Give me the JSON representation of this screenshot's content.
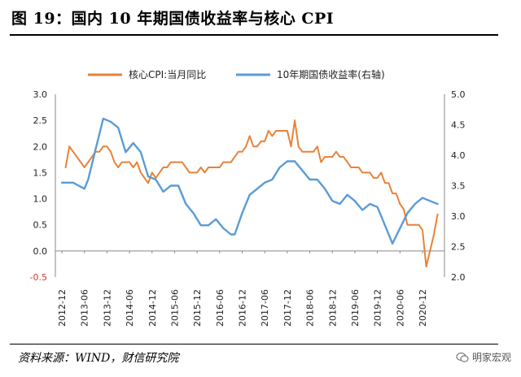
{
  "figure": {
    "title": "图 19：国内 10 年期国债收益率与核心 CPI",
    "source": "资料来源：WIND，财信研究院",
    "watermark": "明家宏观"
  },
  "chart_data": {
    "type": "line",
    "legend": [
      "核心CPI:当月同比",
      "10年期国债收益率(右轴)"
    ],
    "legend_position": "top",
    "grid": false,
    "colors": {
      "core_cpi": "#E8823A",
      "yield_10y": "#5B9BD5"
    },
    "x_ticks": [
      "2012-12",
      "2013-06",
      "2013-12",
      "2014-06",
      "2014-12",
      "2015-06",
      "2015-12",
      "2016-06",
      "2016-12",
      "2017-06",
      "2017-12",
      "2018-06",
      "2018-12",
      "2019-06",
      "2019-12",
      "2020-06",
      "2020-12"
    ],
    "y_left": {
      "ticks": [
        "3.0",
        "2.5",
        "2.0",
        "1.5",
        "1.0",
        "0.5",
        "0.0",
        "-0.5"
      ],
      "range": [
        -0.5,
        3.0
      ]
    },
    "y_right": {
      "ticks": [
        "5.0",
        "4.5",
        "4.0",
        "3.5",
        "3.0",
        "2.5",
        "2.0"
      ],
      "range": [
        2.0,
        5.0
      ]
    },
    "series": [
      {
        "name": "核心CPI:当月同比",
        "axis": "left",
        "x": [
          "2013-01",
          "2013-02",
          "2013-03",
          "2013-04",
          "2013-05",
          "2013-06",
          "2013-07",
          "2013-08",
          "2013-09",
          "2013-10",
          "2013-11",
          "2013-12",
          "2014-01",
          "2014-02",
          "2014-03",
          "2014-04",
          "2014-05",
          "2014-06",
          "2014-07",
          "2014-08",
          "2014-09",
          "2014-10",
          "2014-11",
          "2014-12",
          "2015-01",
          "2015-02",
          "2015-03",
          "2015-04",
          "2015-05",
          "2015-06",
          "2015-07",
          "2015-08",
          "2015-09",
          "2015-10",
          "2015-11",
          "2015-12",
          "2016-01",
          "2016-02",
          "2016-03",
          "2016-04",
          "2016-05",
          "2016-06",
          "2016-07",
          "2016-08",
          "2016-09",
          "2016-10",
          "2016-11",
          "2016-12",
          "2017-01",
          "2017-02",
          "2017-03",
          "2017-04",
          "2017-05",
          "2017-06",
          "2017-07",
          "2017-08",
          "2017-09",
          "2017-10",
          "2017-11",
          "2017-12",
          "2018-01",
          "2018-02",
          "2018-03",
          "2018-04",
          "2018-05",
          "2018-06",
          "2018-07",
          "2018-08",
          "2018-09",
          "2018-10",
          "2018-11",
          "2018-12",
          "2019-01",
          "2019-02",
          "2019-03",
          "2019-04",
          "2019-05",
          "2019-06",
          "2019-07",
          "2019-08",
          "2019-09",
          "2019-10",
          "2019-11",
          "2019-12",
          "2020-01",
          "2020-02",
          "2020-03",
          "2020-04",
          "2020-05",
          "2020-06",
          "2020-07",
          "2020-08",
          "2020-09",
          "2020-10",
          "2020-11",
          "2020-12",
          "2021-01",
          "2021-02",
          "2021-03",
          "2021-04"
        ],
        "values": [
          1.6,
          2.0,
          1.9,
          1.8,
          1.7,
          1.6,
          1.7,
          1.8,
          1.9,
          1.9,
          2.0,
          2.0,
          1.9,
          1.7,
          1.6,
          1.7,
          1.7,
          1.7,
          1.6,
          1.7,
          1.5,
          1.4,
          1.3,
          1.5,
          1.4,
          1.5,
          1.6,
          1.6,
          1.7,
          1.7,
          1.7,
          1.7,
          1.6,
          1.5,
          1.5,
          1.5,
          1.6,
          1.5,
          1.6,
          1.6,
          1.6,
          1.6,
          1.7,
          1.7,
          1.7,
          1.8,
          1.9,
          1.9,
          2.0,
          2.2,
          2.0,
          2.0,
          2.1,
          2.1,
          2.3,
          2.2,
          2.3,
          2.3,
          2.3,
          2.3,
          2.0,
          2.5,
          2.0,
          1.9,
          1.9,
          1.9,
          1.9,
          2.0,
          1.7,
          1.8,
          1.8,
          1.8,
          1.9,
          1.8,
          1.8,
          1.7,
          1.6,
          1.6,
          1.6,
          1.5,
          1.5,
          1.5,
          1.4,
          1.4,
          1.5,
          1.3,
          1.3,
          1.1,
          1.1,
          0.9,
          0.8,
          0.5,
          0.5,
          0.5,
          0.5,
          0.4,
          -0.3,
          0.0,
          0.3,
          0.7
        ]
      },
      {
        "name": "10年期国债收益率(右轴)",
        "axis": "right",
        "x": [
          "2012-12",
          "2013-03",
          "2013-06",
          "2013-07",
          "2013-09",
          "2013-11",
          "2014-01",
          "2014-03",
          "2014-05",
          "2014-07",
          "2014-09",
          "2014-11",
          "2015-01",
          "2015-03",
          "2015-05",
          "2015-07",
          "2015-09",
          "2015-11",
          "2016-01",
          "2016-03",
          "2016-05",
          "2016-07",
          "2016-09",
          "2016-10",
          "2016-12",
          "2017-02",
          "2017-04",
          "2017-06",
          "2017-08",
          "2017-10",
          "2017-12",
          "2018-02",
          "2018-04",
          "2018-06",
          "2018-08",
          "2018-10",
          "2018-12",
          "2019-02",
          "2019-04",
          "2019-06",
          "2019-08",
          "2019-10",
          "2019-12",
          "2020-02",
          "2020-04",
          "2020-06",
          "2020-08",
          "2020-10",
          "2020-12",
          "2021-02",
          "2021-04"
        ],
        "values": [
          3.55,
          3.55,
          3.45,
          3.6,
          4.1,
          4.6,
          4.55,
          4.45,
          4.05,
          4.2,
          4.05,
          3.65,
          3.6,
          3.4,
          3.5,
          3.5,
          3.2,
          3.05,
          2.85,
          2.85,
          2.95,
          2.8,
          2.7,
          2.7,
          3.05,
          3.35,
          3.45,
          3.55,
          3.6,
          3.8,
          3.9,
          3.9,
          3.75,
          3.6,
          3.6,
          3.45,
          3.25,
          3.2,
          3.35,
          3.25,
          3.1,
          3.2,
          3.15,
          2.85,
          2.55,
          2.8,
          3.05,
          3.2,
          3.3,
          3.25,
          3.2
        ]
      }
    ]
  }
}
